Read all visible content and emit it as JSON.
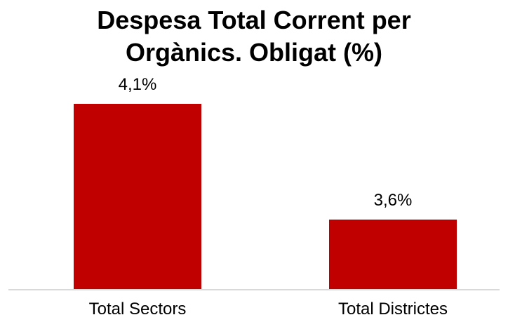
{
  "chart_data": {
    "type": "bar",
    "title_lines": [
      "Despesa Total Corrent per",
      "Orgànics. Obligat (%)"
    ],
    "categories": [
      "Total Sectors",
      "Total Districtes"
    ],
    "values": [
      4.1,
      3.6
    ],
    "data_labels": [
      "4,1%",
      "3,6%"
    ],
    "xlabel": "",
    "ylabel": "",
    "ylim": [
      3.3,
      4.1
    ],
    "grid": false,
    "legend": "none",
    "bar_color": "#C00000",
    "axis_color": "#D9D9D9"
  }
}
